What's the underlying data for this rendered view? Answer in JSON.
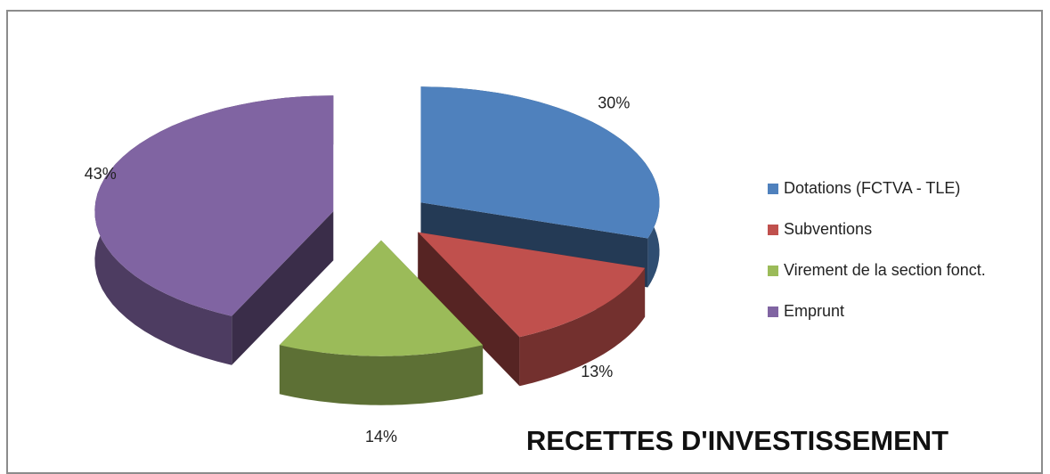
{
  "chart_data": {
    "type": "pie3d",
    "title": "RECETTES D'INVESTISSEMENT",
    "categories": [
      "Dotations (FCTVA - TLE)",
      "Subventions",
      "Virement de la section fonct.",
      "Emprunt"
    ],
    "values": [
      30,
      13,
      14,
      43
    ],
    "value_labels": [
      "30%",
      "13%",
      "14%",
      "43%"
    ],
    "colors": [
      "#4f81bd",
      "#c0504d",
      "#9bbb59",
      "#8064a2"
    ],
    "legend": "right"
  }
}
